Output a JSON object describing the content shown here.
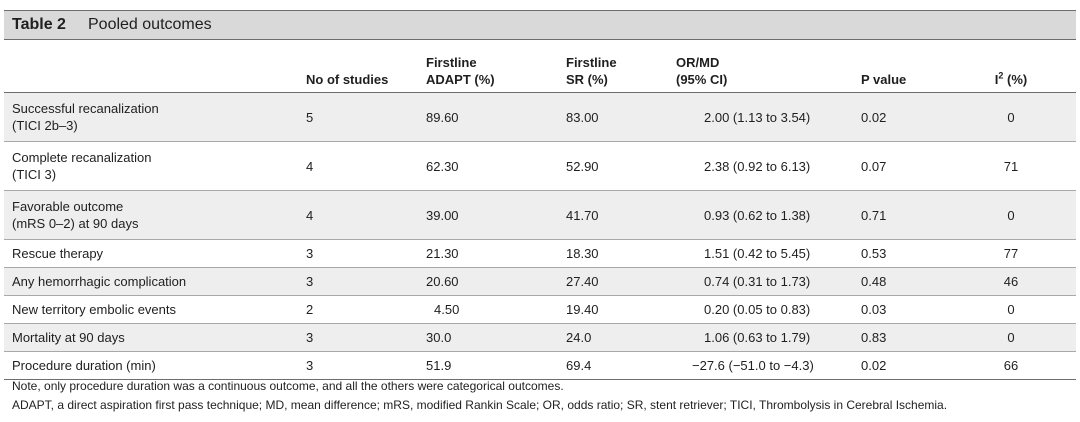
{
  "table": {
    "number": "Table 2",
    "title": "Pooled outcomes",
    "columns": [
      {
        "line1": "",
        "line2": ""
      },
      {
        "line1": "",
        "line2": "No of studies"
      },
      {
        "line1": "Firstline",
        "line2": "ADAPT (%)"
      },
      {
        "line1": "Firstline",
        "line2": "SR (%)"
      },
      {
        "line1": "OR/MD",
        "line2": "(95% CI)"
      },
      {
        "line1": "",
        "line2": "P value"
      },
      {
        "line1": "",
        "line2": "I",
        "sup": "2",
        "suffix": " (%)"
      }
    ],
    "rows": [
      {
        "outcome": "Successful recanalization",
        "outcome2": "(TICI 2b–3)",
        "studies": "5",
        "adapt": "89.60",
        "sr": "83.00",
        "ormd": "2.00 (1.13 to 3.54)",
        "p": "0.02",
        "i2": "0"
      },
      {
        "outcome": "Complete recanalization",
        "outcome2": "(TICI 3)",
        "studies": "4",
        "adapt": "62.30",
        "sr": "52.90",
        "ormd": "2.38 (0.92 to 6.13)",
        "p": "0.07",
        "i2": "71"
      },
      {
        "outcome": "Favorable outcome",
        "outcome2": "(mRS 0–2) at 90 days",
        "studies": "4",
        "adapt": "39.00",
        "sr": "41.70",
        "ormd": "0.93 (0.62 to 1.38)",
        "p": "0.71",
        "i2": "0"
      },
      {
        "outcome": "Rescue therapy",
        "outcome2": "",
        "studies": "3",
        "adapt": "21.30",
        "sr": "18.30",
        "ormd": "1.51 (0.42 to 5.45)",
        "p": "0.53",
        "i2": "77"
      },
      {
        "outcome": "Any hemorrhagic complication",
        "outcome2": "",
        "studies": "3",
        "adapt": "20.60",
        "sr": "27.40",
        "ormd": "0.74 (0.31 to 1.73)",
        "p": "0.48",
        "i2": "46"
      },
      {
        "outcome": "New territory embolic events",
        "outcome2": "",
        "studies": "2",
        "adapt": "4.50",
        "sr": "19.40",
        "ormd": "0.20 (0.05 to 0.83)",
        "p": "0.03",
        "i2": "0"
      },
      {
        "outcome": "Mortality at 90 days",
        "outcome2": "",
        "studies": "3",
        "adapt": "30.0",
        "sr": "24.0",
        "ormd": "1.06 (0.63 to 1.79)",
        "p": "0.83",
        "i2": "0"
      },
      {
        "outcome": "Procedure duration (min)",
        "outcome2": "",
        "studies": "3",
        "adapt": "51.9",
        "sr": "69.4",
        "ormd": "−27.6 (−51.0 to −4.3)",
        "p": "0.02",
        "i2": "66"
      }
    ],
    "footnotes": [
      "Note, only procedure duration was a continuous outcome, and all the others were categorical outcomes.",
      "ADAPT, a direct aspiration first pass technique; MD, mean difference;  mRS, modified Rankin Scale; OR, odds ratio; SR, stent retriever; TICI, Thrombolysis in Cerebral Ischemia."
    ]
  }
}
